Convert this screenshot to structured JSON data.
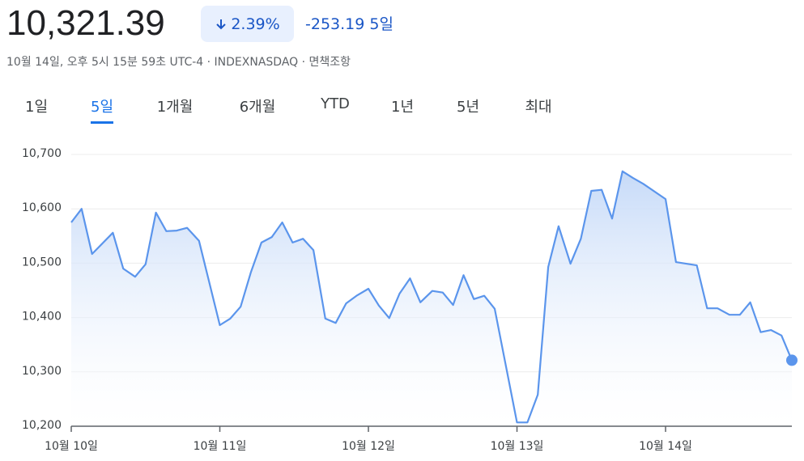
{
  "header": {
    "price": "10,321.39",
    "change_pct": "2.39%",
    "change": "-253.19",
    "period": "5일",
    "timestamp": "10월 14일, 오후 5시 15분 59초 UTC-4 · INDEXNASDAQ · 면책조항"
  },
  "tabs": [
    "1일",
    "5일",
    "1개월",
    "6개월",
    "YTD",
    "1년",
    "5년",
    "최대"
  ],
  "selected_tab": 1,
  "chart_data": {
    "type": "area",
    "color": "#5b95ec",
    "grid": true,
    "x": [
      0,
      0.07,
      0.14,
      0.28,
      0.35,
      0.43,
      0.5,
      0.57,
      0.64,
      0.71,
      0.78,
      0.86,
      1.0,
      1.07,
      1.14,
      1.21,
      1.28,
      1.35,
      1.42,
      1.49,
      1.56,
      1.63,
      1.71,
      1.78,
      1.85,
      1.92,
      2.0,
      2.07,
      2.14,
      2.21,
      2.28,
      2.35,
      2.43,
      2.5,
      2.57,
      2.64,
      2.71,
      2.78,
      2.85,
      3.0,
      3.07,
      3.14,
      3.21,
      3.28,
      3.36,
      3.43,
      3.5,
      3.57,
      3.64,
      3.71,
      3.78,
      3.85,
      4.0,
      4.07,
      4.14,
      4.21,
      4.28,
      4.35,
      4.43,
      4.5,
      4.57,
      4.64,
      4.71,
      4.78,
      4.85
    ],
    "values": [
      10575,
      10600,
      10517,
      10556,
      10490,
      10475,
      10498,
      10593,
      10559,
      10560,
      10565,
      10541,
      10386,
      10398,
      10420,
      10484,
      10538,
      10548,
      10575,
      10538,
      10545,
      10524,
      10398,
      10390,
      10426,
      10440,
      10453,
      10422,
      10399,
      10444,
      10472,
      10428,
      10449,
      10446,
      10423,
      10478,
      10434,
      10440,
      10416,
      10207,
      10207,
      10258,
      10493,
      10568,
      10499,
      10545,
      10633,
      10635,
      10582,
      10669,
      10657,
      10646,
      10618,
      10502,
      10499,
      10496,
      10417,
      10417,
      10405,
      10405,
      10428,
      10373,
      10377,
      10367,
      10321.39
    ],
    "xlim": [
      0,
      4.85
    ],
    "xticks": [
      {
        "value": 0,
        "label": "10월 10일"
      },
      {
        "value": 1,
        "label": "10월 11일"
      },
      {
        "value": 2,
        "label": "10월 12일"
      },
      {
        "value": 3,
        "label": "10월 13일"
      },
      {
        "value": 4,
        "label": "10월 14일"
      }
    ],
    "ylim": [
      10200,
      10700
    ],
    "yticks": [
      {
        "value": 10200,
        "label": "10,200"
      },
      {
        "value": 10300,
        "label": "10,300"
      },
      {
        "value": 10400,
        "label": "10,400"
      },
      {
        "value": 10500,
        "label": "10,500"
      },
      {
        "value": 10600,
        "label": "10,600"
      },
      {
        "value": 10700,
        "label": "10,700"
      }
    ]
  }
}
